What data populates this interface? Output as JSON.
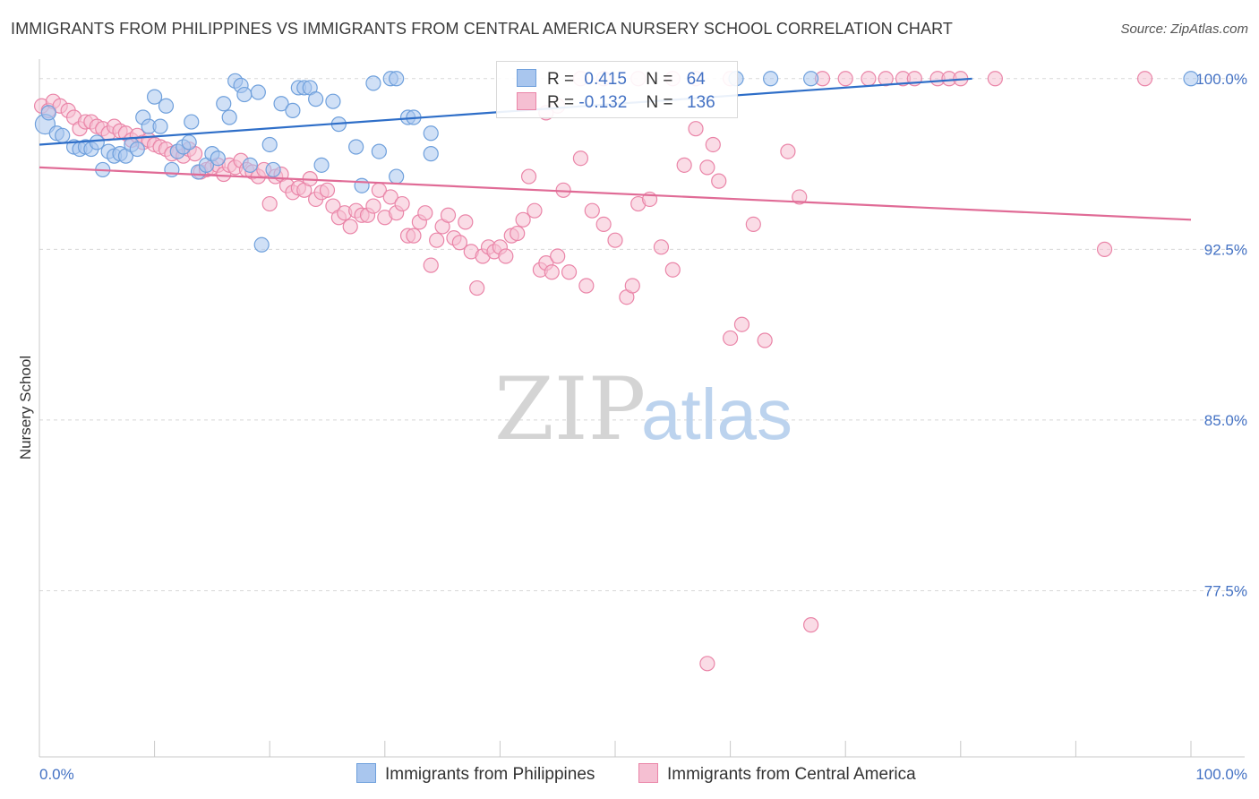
{
  "title": "IMMIGRANTS FROM PHILIPPINES VS IMMIGRANTS FROM CENTRAL AMERICA NURSERY SCHOOL CORRELATION CHART",
  "source": "Source: ZipAtlas.com",
  "watermark": {
    "zip": "ZIP",
    "atlas": "atlas"
  },
  "colors": {
    "blue": "#6fa0dc",
    "blue_fill": "#a9c6ee",
    "blue_line": "#2e6ec8",
    "pink": "#ea85a8",
    "pink_fill": "#f5bfd2",
    "pink_line": "#e06b96",
    "grid": "#d8d8d8",
    "tick_label": "#4472c4"
  },
  "legend": {
    "rows": [
      {
        "r_label": "R =",
        "r_value": "0.415",
        "n_label": "N =",
        "n_value": "64",
        "color": "#a9c6ee"
      },
      {
        "r_label": "R =",
        "r_value": "-0.132",
        "n_label": "N =",
        "n_value": "136",
        "color": "#f5bfd2"
      }
    ]
  },
  "bottom_legend": [
    {
      "label": "Immigrants from Philippines",
      "color": "#a9c6ee"
    },
    {
      "label": "Immigrants from Central America",
      "color": "#f5bfd2"
    }
  ],
  "chart_data": {
    "type": "scatter",
    "title": "IMMIGRANTS FROM PHILIPPINES VS IMMIGRANTS FROM CENTRAL AMERICA NURSERY SCHOOL CORRELATION CHART",
    "xlabel": "",
    "ylabel": "Nursery School",
    "xlim": [
      0,
      100
    ],
    "ylim": [
      70.2,
      100.7
    ],
    "x_tick_labels": [
      "0.0%",
      "100.0%"
    ],
    "y_ticks": [
      100.0,
      92.5,
      85.0,
      77.5
    ],
    "y_tick_labels": [
      "100.0%",
      "92.5%",
      "85.0%",
      "77.5%"
    ],
    "series": [
      {
        "name": "Immigrants from Philippines",
        "color": "#6fa0dc",
        "trend": {
          "x": [
            0,
            81
          ],
          "y": [
            97.1,
            100.0
          ]
        },
        "points": [
          [
            0.5,
            98.0
          ],
          [
            1.5,
            97.6
          ],
          [
            2,
            97.5
          ],
          [
            3,
            97.0
          ],
          [
            3.5,
            96.9
          ],
          [
            4,
            97.0
          ],
          [
            4.5,
            96.9
          ],
          [
            5,
            97.2
          ],
          [
            5.5,
            96.0
          ],
          [
            6,
            96.8
          ],
          [
            6.5,
            96.6
          ],
          [
            7,
            96.7
          ],
          [
            7.5,
            96.6
          ],
          [
            8,
            97.1
          ],
          [
            8.5,
            96.9
          ],
          [
            9,
            98.3
          ],
          [
            9.5,
            97.9
          ],
          [
            10,
            99.2
          ],
          [
            10.5,
            97.9
          ],
          [
            11,
            98.8
          ],
          [
            11.5,
            96.0
          ],
          [
            12,
            96.8
          ],
          [
            12.5,
            97.0
          ],
          [
            13,
            97.2
          ],
          [
            13.2,
            98.1
          ],
          [
            13.8,
            95.9
          ],
          [
            14.5,
            96.2
          ],
          [
            15,
            96.7
          ],
          [
            15.5,
            96.5
          ],
          [
            16,
            98.9
          ],
          [
            16.5,
            98.3
          ],
          [
            17,
            99.9
          ],
          [
            17.5,
            99.7
          ],
          [
            17.8,
            99.3
          ],
          [
            18.3,
            96.2
          ],
          [
            19,
            99.4
          ],
          [
            19.3,
            92.7
          ],
          [
            20,
            97.1
          ],
          [
            20.3,
            96.0
          ],
          [
            21,
            98.9
          ],
          [
            22,
            98.6
          ],
          [
            22.5,
            99.6
          ],
          [
            23,
            99.6
          ],
          [
            23.5,
            99.6
          ],
          [
            24,
            99.1
          ],
          [
            24.5,
            96.2
          ],
          [
            25.5,
            99.0
          ],
          [
            26,
            98.0
          ],
          [
            27.5,
            97.0
          ],
          [
            28,
            95.3
          ],
          [
            29,
            99.8
          ],
          [
            29.5,
            96.8
          ],
          [
            30.5,
            100.0
          ],
          [
            31,
            100.0
          ],
          [
            31,
            95.7
          ],
          [
            32,
            98.3
          ],
          [
            32.5,
            98.3
          ],
          [
            34,
            97.6
          ],
          [
            34,
            96.7
          ],
          [
            60.5,
            100.0
          ],
          [
            63.5,
            100.0
          ],
          [
            67,
            100.0
          ],
          [
            100,
            100.0
          ],
          [
            0.8,
            98.5
          ]
        ]
      },
      {
        "name": "Immigrants from Central America",
        "color": "#ea85a8",
        "trend": {
          "x": [
            0,
            100
          ],
          "y": [
            96.1,
            93.8
          ]
        },
        "points": [
          [
            0.2,
            98.8
          ],
          [
            0.8,
            98.6
          ],
          [
            1.2,
            99.0
          ],
          [
            1.8,
            98.8
          ],
          [
            2.5,
            98.6
          ],
          [
            3,
            98.3
          ],
          [
            3.5,
            97.8
          ],
          [
            4,
            98.1
          ],
          [
            4.5,
            98.1
          ],
          [
            5,
            97.9
          ],
          [
            5.5,
            97.8
          ],
          [
            6,
            97.6
          ],
          [
            6.5,
            97.9
          ],
          [
            7,
            97.7
          ],
          [
            7.5,
            97.6
          ],
          [
            8,
            97.3
          ],
          [
            8.5,
            97.5
          ],
          [
            9,
            97.2
          ],
          [
            9.5,
            97.3
          ],
          [
            10,
            97.1
          ],
          [
            10.5,
            97.0
          ],
          [
            11,
            96.9
          ],
          [
            11.5,
            96.7
          ],
          [
            12,
            96.8
          ],
          [
            12.5,
            96.6
          ],
          [
            13,
            96.9
          ],
          [
            13.5,
            96.7
          ],
          [
            14,
            95.9
          ],
          [
            14.5,
            96.0
          ],
          [
            15,
            96.1
          ],
          [
            15.5,
            96.2
          ],
          [
            16,
            95.8
          ],
          [
            16.5,
            96.2
          ],
          [
            17,
            96.1
          ],
          [
            17.5,
            96.4
          ],
          [
            18,
            96.0
          ],
          [
            18.5,
            95.9
          ],
          [
            19,
            95.7
          ],
          [
            19.5,
            96.0
          ],
          [
            20,
            94.5
          ],
          [
            20.5,
            95.7
          ],
          [
            21,
            95.8
          ],
          [
            21.5,
            95.3
          ],
          [
            22,
            95.0
          ],
          [
            22.5,
            95.2
          ],
          [
            23,
            95.1
          ],
          [
            23.5,
            95.6
          ],
          [
            24,
            94.7
          ],
          [
            24.5,
            95.0
          ],
          [
            25,
            95.1
          ],
          [
            25.5,
            94.4
          ],
          [
            26,
            93.9
          ],
          [
            26.5,
            94.1
          ],
          [
            27,
            93.5
          ],
          [
            27.5,
            94.2
          ],
          [
            28,
            94.0
          ],
          [
            28.5,
            94.0
          ],
          [
            29,
            94.4
          ],
          [
            29.5,
            95.1
          ],
          [
            30,
            93.9
          ],
          [
            30.5,
            94.8
          ],
          [
            31,
            94.1
          ],
          [
            31.5,
            94.5
          ],
          [
            32,
            93.1
          ],
          [
            32.5,
            93.1
          ],
          [
            33,
            93.7
          ],
          [
            33.5,
            94.1
          ],
          [
            34,
            91.8
          ],
          [
            34.5,
            92.9
          ],
          [
            35,
            93.5
          ],
          [
            35.5,
            94.0
          ],
          [
            36,
            93.0
          ],
          [
            36.5,
            92.8
          ],
          [
            37,
            93.7
          ],
          [
            37.5,
            92.4
          ],
          [
            38,
            90.8
          ],
          [
            38.5,
            92.2
          ],
          [
            39,
            92.6
          ],
          [
            39.5,
            92.4
          ],
          [
            40,
            92.6
          ],
          [
            40.5,
            92.2
          ],
          [
            41,
            93.1
          ],
          [
            41.5,
            93.2
          ],
          [
            42,
            93.8
          ],
          [
            42.5,
            95.7
          ],
          [
            43,
            94.2
          ],
          [
            43.5,
            91.6
          ],
          [
            44,
            91.9
          ],
          [
            44.5,
            91.5
          ],
          [
            45,
            92.2
          ],
          [
            45.5,
            95.1
          ],
          [
            46,
            91.5
          ],
          [
            47,
            96.5
          ],
          [
            47.5,
            90.9
          ],
          [
            48,
            94.2
          ],
          [
            49,
            93.6
          ],
          [
            50,
            92.9
          ],
          [
            51,
            90.4
          ],
          [
            51.5,
            90.9
          ],
          [
            52,
            94.5
          ],
          [
            53,
            94.7
          ],
          [
            54,
            92.6
          ],
          [
            55,
            91.6
          ],
          [
            56,
            96.2
          ],
          [
            57,
            97.8
          ],
          [
            58,
            96.1
          ],
          [
            58.5,
            97.1
          ],
          [
            59,
            95.5
          ],
          [
            60,
            88.6
          ],
          [
            61,
            89.2
          ],
          [
            62,
            93.6
          ],
          [
            63,
            88.5
          ],
          [
            65,
            96.8
          ],
          [
            66,
            94.8
          ],
          [
            67,
            76.0
          ],
          [
            58,
            74.3
          ],
          [
            68,
            100.0
          ],
          [
            70,
            100.0
          ],
          [
            72,
            100.0
          ],
          [
            73.5,
            100.0
          ],
          [
            75,
            100.0
          ],
          [
            76,
            100.0
          ],
          [
            78,
            100.0
          ],
          [
            79,
            100.0
          ],
          [
            80,
            100.0
          ],
          [
            83,
            100.0
          ],
          [
            96,
            100.0
          ],
          [
            92.5,
            92.5
          ],
          [
            60,
            100.0
          ],
          [
            57,
            100.0
          ],
          [
            55,
            100.0
          ],
          [
            52,
            100.0
          ],
          [
            49,
            100.0
          ],
          [
            47,
            100.0
          ],
          [
            45,
            98.8
          ],
          [
            44,
            98.5
          ]
        ]
      }
    ]
  }
}
